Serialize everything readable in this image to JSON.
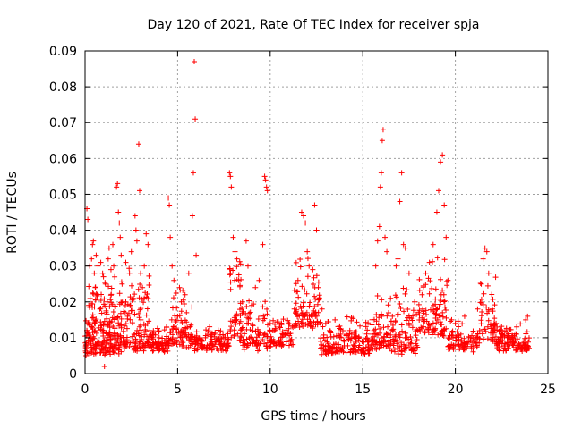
{
  "chart_data": {
    "type": "scatter",
    "title": "Day 120 of 2021, Rate Of TEC Index for receiver spja",
    "xlabel": "GPS time / hours",
    "ylabel": "ROTI / TECUs",
    "xlim": [
      0,
      25
    ],
    "ylim": [
      0,
      0.09
    ],
    "xticks": [
      0,
      5,
      10,
      15,
      20,
      25
    ],
    "yticks": [
      0,
      0.01,
      0.02,
      0.03,
      0.04,
      0.05,
      0.06,
      0.07,
      0.08,
      0.09
    ],
    "grid": true,
    "marker": "plus",
    "color": "#ff0000",
    "points": [
      [
        0.05,
        0.005
      ],
      [
        0.1,
        0.012
      ],
      [
        0.1,
        0.046
      ],
      [
        0.15,
        0.043
      ],
      [
        0.2,
        0.019
      ],
      [
        0.25,
        0.03
      ],
      [
        0.3,
        0.01
      ],
      [
        0.35,
        0.032
      ],
      [
        0.4,
        0.036
      ],
      [
        0.45,
        0.037
      ],
      [
        0.5,
        0.028
      ],
      [
        0.55,
        0.024
      ],
      [
        0.6,
        0.033
      ],
      [
        0.65,
        0.022
      ],
      [
        0.7,
        0.03
      ],
      [
        0.8,
        0.018
      ],
      [
        0.85,
        0.031
      ],
      [
        0.9,
        0.008
      ],
      [
        0.95,
        0.028
      ],
      [
        1.0,
        0.012
      ],
      [
        1.05,
        0.002
      ],
      [
        1.1,
        0.025
      ],
      [
        1.2,
        0.02
      ],
      [
        1.25,
        0.032
      ],
      [
        1.3,
        0.035
      ],
      [
        1.4,
        0.029
      ],
      [
        1.5,
        0.036
      ],
      [
        1.55,
        0.03
      ],
      [
        1.6,
        0.027
      ],
      [
        1.7,
        0.052
      ],
      [
        1.75,
        0.053
      ],
      [
        1.8,
        0.045
      ],
      [
        1.85,
        0.042
      ],
      [
        1.9,
        0.038
      ],
      [
        1.95,
        0.033
      ],
      [
        2.0,
        0.025
      ],
      [
        2.1,
        0.02
      ],
      [
        2.2,
        0.031
      ],
      [
        2.3,
        0.016
      ],
      [
        2.4,
        0.028
      ],
      [
        2.5,
        0.034
      ],
      [
        2.6,
        0.021
      ],
      [
        2.7,
        0.044
      ],
      [
        2.75,
        0.04
      ],
      [
        2.8,
        0.037
      ],
      [
        2.9,
        0.064
      ],
      [
        2.95,
        0.051
      ],
      [
        3.0,
        0.028
      ],
      [
        3.1,
        0.024
      ],
      [
        3.2,
        0.03
      ],
      [
        3.3,
        0.039
      ],
      [
        3.4,
        0.036
      ],
      [
        3.5,
        0.012
      ],
      [
        3.6,
        0.01
      ],
      [
        3.8,
        0.009
      ],
      [
        4.0,
        0.01
      ],
      [
        4.2,
        0.008
      ],
      [
        4.4,
        0.013
      ],
      [
        4.5,
        0.049
      ],
      [
        4.55,
        0.047
      ],
      [
        4.6,
        0.038
      ],
      [
        4.7,
        0.03
      ],
      [
        4.8,
        0.026
      ],
      [
        5.0,
        0.016
      ],
      [
        5.1,
        0.024
      ],
      [
        5.2,
        0.02
      ],
      [
        5.4,
        0.022
      ],
      [
        5.6,
        0.028
      ],
      [
        5.8,
        0.044
      ],
      [
        5.85,
        0.056
      ],
      [
        5.9,
        0.087
      ],
      [
        5.95,
        0.071
      ],
      [
        6.0,
        0.033
      ],
      [
        6.1,
        0.009
      ],
      [
        6.3,
        0.008
      ],
      [
        6.5,
        0.01
      ],
      [
        6.8,
        0.009
      ],
      [
        7.0,
        0.011
      ],
      [
        7.3,
        0.008
      ],
      [
        7.5,
        0.01
      ],
      [
        7.8,
        0.056
      ],
      [
        7.85,
        0.055
      ],
      [
        7.9,
        0.052
      ],
      [
        8.0,
        0.038
      ],
      [
        8.1,
        0.034
      ],
      [
        8.2,
        0.032
      ],
      [
        8.3,
        0.026
      ],
      [
        8.5,
        0.02
      ],
      [
        8.7,
        0.037
      ],
      [
        8.8,
        0.03
      ],
      [
        9.0,
        0.019
      ],
      [
        9.2,
        0.024
      ],
      [
        9.4,
        0.026
      ],
      [
        9.5,
        0.016
      ],
      [
        9.6,
        0.036
      ],
      [
        9.7,
        0.055
      ],
      [
        9.75,
        0.054
      ],
      [
        9.8,
        0.052
      ],
      [
        9.85,
        0.051
      ],
      [
        10.0,
        0.014
      ],
      [
        10.2,
        0.012
      ],
      [
        10.5,
        0.013
      ],
      [
        10.8,
        0.011
      ],
      [
        11.0,
        0.014
      ],
      [
        11.3,
        0.018
      ],
      [
        11.5,
        0.026
      ],
      [
        11.7,
        0.045
      ],
      [
        11.8,
        0.044
      ],
      [
        11.9,
        0.042
      ],
      [
        12.0,
        0.034
      ],
      [
        12.1,
        0.03
      ],
      [
        12.3,
        0.029
      ],
      [
        12.4,
        0.047
      ],
      [
        12.5,
        0.04
      ],
      [
        12.6,
        0.024
      ],
      [
        12.8,
        0.018
      ],
      [
        13.0,
        0.014
      ],
      [
        13.2,
        0.012
      ],
      [
        13.5,
        0.015
      ],
      [
        13.8,
        0.011
      ],
      [
        14.0,
        0.009
      ],
      [
        14.3,
        0.012
      ],
      [
        14.5,
        0.008
      ],
      [
        14.8,
        0.01
      ],
      [
        15.0,
        0.006
      ],
      [
        15.3,
        0.008
      ],
      [
        15.5,
        0.011
      ],
      [
        15.7,
        0.03
      ],
      [
        15.8,
        0.037
      ],
      [
        15.9,
        0.041
      ],
      [
        15.95,
        0.052
      ],
      [
        16.0,
        0.056
      ],
      [
        16.05,
        0.065
      ],
      [
        16.1,
        0.068
      ],
      [
        16.2,
        0.038
      ],
      [
        16.3,
        0.034
      ],
      [
        16.5,
        0.021
      ],
      [
        16.6,
        0.016
      ],
      [
        16.8,
        0.03
      ],
      [
        16.9,
        0.032
      ],
      [
        17.0,
        0.048
      ],
      [
        17.1,
        0.056
      ],
      [
        17.2,
        0.036
      ],
      [
        17.3,
        0.035
      ],
      [
        17.5,
        0.028
      ],
      [
        17.8,
        0.02
      ],
      [
        18.0,
        0.017
      ],
      [
        18.2,
        0.022
      ],
      [
        18.4,
        0.028
      ],
      [
        18.6,
        0.031
      ],
      [
        18.8,
        0.036
      ],
      [
        19.0,
        0.045
      ],
      [
        19.1,
        0.051
      ],
      [
        19.2,
        0.059
      ],
      [
        19.3,
        0.061
      ],
      [
        19.4,
        0.047
      ],
      [
        19.5,
        0.038
      ],
      [
        19.6,
        0.026
      ],
      [
        19.8,
        0.015
      ],
      [
        20.0,
        0.014
      ],
      [
        20.3,
        0.011
      ],
      [
        20.5,
        0.016
      ],
      [
        20.8,
        0.01
      ],
      [
        21.0,
        0.009
      ],
      [
        21.2,
        0.018
      ],
      [
        21.4,
        0.025
      ],
      [
        21.5,
        0.032
      ],
      [
        21.6,
        0.035
      ],
      [
        21.7,
        0.034
      ],
      [
        21.8,
        0.028
      ],
      [
        22.0,
        0.018
      ],
      [
        22.2,
        0.014
      ],
      [
        22.5,
        0.012
      ],
      [
        22.8,
        0.01
      ],
      [
        23.0,
        0.009
      ],
      [
        23.3,
        0.011
      ],
      [
        23.5,
        0.008
      ],
      [
        23.7,
        0.009
      ],
      [
        23.8,
        0.015
      ],
      [
        23.9,
        0.016
      ]
    ],
    "bands": [
      {
        "x0": 0,
        "x1": 2.0,
        "lo": 0.005,
        "hi": 0.028,
        "n": 230
      },
      {
        "x0": 2.0,
        "x1": 3.5,
        "lo": 0.006,
        "hi": 0.03,
        "n": 120
      },
      {
        "x0": 3.5,
        "x1": 4.6,
        "lo": 0.006,
        "hi": 0.013,
        "n": 70
      },
      {
        "x0": 4.6,
        "x1": 5.8,
        "lo": 0.007,
        "hi": 0.024,
        "n": 80
      },
      {
        "x0": 5.8,
        "x1": 7.8,
        "lo": 0.006,
        "hi": 0.012,
        "n": 110
      },
      {
        "x0": 7.8,
        "x1": 8.5,
        "lo": 0.008,
        "hi": 0.035,
        "n": 50
      },
      {
        "x0": 8.5,
        "x1": 9.9,
        "lo": 0.006,
        "hi": 0.022,
        "n": 80
      },
      {
        "x0": 9.9,
        "x1": 11.3,
        "lo": 0.007,
        "hi": 0.016,
        "n": 70
      },
      {
        "x0": 11.3,
        "x1": 12.7,
        "lo": 0.012,
        "hi": 0.033,
        "n": 90
      },
      {
        "x0": 12.7,
        "x1": 15.5,
        "lo": 0.005,
        "hi": 0.016,
        "n": 160
      },
      {
        "x0": 15.5,
        "x1": 16.7,
        "lo": 0.006,
        "hi": 0.024,
        "n": 80
      },
      {
        "x0": 16.7,
        "x1": 18.0,
        "lo": 0.005,
        "hi": 0.025,
        "n": 80
      },
      {
        "x0": 18.0,
        "x1": 19.6,
        "lo": 0.01,
        "hi": 0.035,
        "n": 100
      },
      {
        "x0": 19.6,
        "x1": 21.2,
        "lo": 0.006,
        "hi": 0.015,
        "n": 80
      },
      {
        "x0": 21.2,
        "x1": 22.2,
        "lo": 0.008,
        "hi": 0.027,
        "n": 60
      },
      {
        "x0": 22.2,
        "x1": 24,
        "lo": 0.006,
        "hi": 0.013,
        "n": 120
      }
    ]
  }
}
